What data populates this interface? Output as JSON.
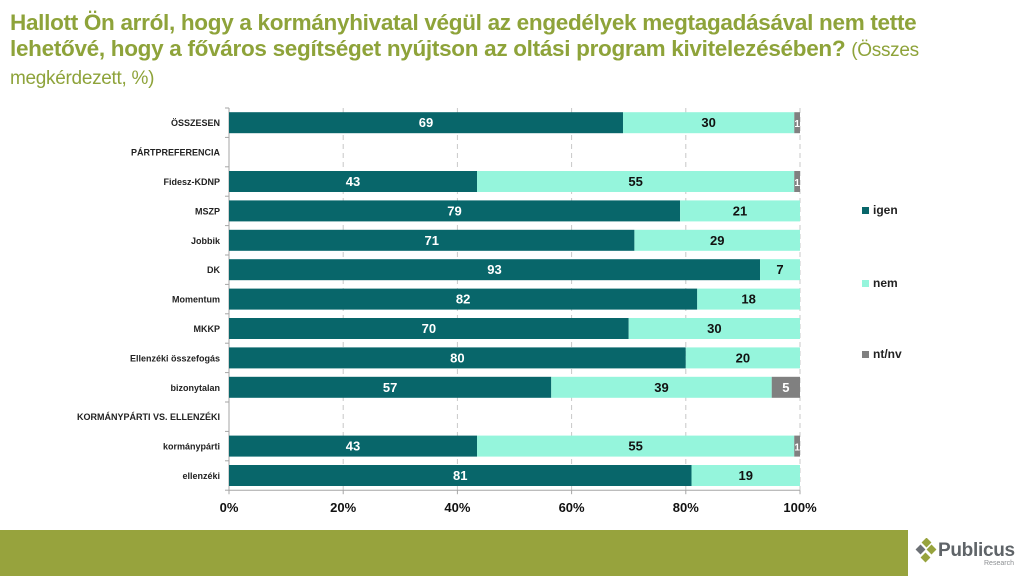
{
  "title": {
    "main": "Hallott Ön arról, hogy a kormányhivatal végül az engedélyek megtagadásával nem tette lehetővé, hogy a főváros segítséget nyújtson az oltási program kivitelezésében?",
    "sub": "(Összes megkérdezett, %)"
  },
  "logo": {
    "name": "Publicus",
    "sub": "Research"
  },
  "colors": {
    "igen": "#08666a",
    "nem": "#95f5dc",
    "ntnv": "#808080",
    "title": "#8ea33a",
    "band": "#97a33d"
  },
  "chart_data": {
    "type": "bar",
    "orientation": "horizontal",
    "stacked": true,
    "percent": true,
    "title": "Hallott Ön arról, hogy a kormányhivatal végül az engedélyek megtagadásával nem tette lehetővé, hogy a főváros segítséget nyújtson az oltási program kivitelezésében? (Összes megkérdezett, %)",
    "xlabel": "",
    "ylabel": "",
    "xlim": [
      0,
      100
    ],
    "x_ticks": [
      "0%",
      "20%",
      "40%",
      "60%",
      "80%",
      "100%"
    ],
    "grid": "vertical dashed",
    "legend_position": "right",
    "categories": [
      "ÖSSZESEN",
      "PÁRTPREFERENCIA",
      "Fidesz-KDNP",
      "MSZP",
      "Jobbik",
      "DK",
      "Momentum",
      "MKKP",
      "Ellenzéki összefogás",
      "bizonytalan",
      "KORMÁNYPÁRTI VS. ELLENZÉKI",
      "kormánypárti",
      "ellenzéki"
    ],
    "series": [
      {
        "name": "igen",
        "values": [
          69,
          null,
          43,
          79,
          71,
          93,
          82,
          70,
          80,
          57,
          null,
          43,
          81
        ]
      },
      {
        "name": "nem",
        "values": [
          30,
          null,
          55,
          21,
          29,
          7,
          18,
          30,
          20,
          39,
          null,
          55,
          19
        ]
      },
      {
        "name": "nt/nv",
        "values": [
          1,
          null,
          1,
          0,
          0,
          0,
          0,
          0,
          0,
          5,
          null,
          1,
          0
        ]
      }
    ]
  }
}
